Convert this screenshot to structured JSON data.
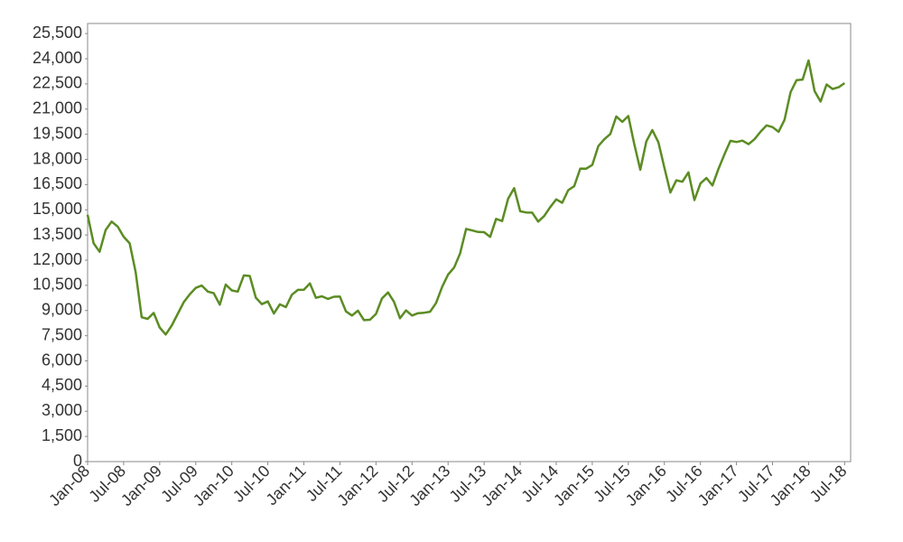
{
  "chart_data": {
    "type": "line",
    "x": [
      "2008-01",
      "2008-02",
      "2008-03",
      "2008-04",
      "2008-05",
      "2008-06",
      "2008-07",
      "2008-08",
      "2008-09",
      "2008-10",
      "2008-11",
      "2008-12",
      "2009-01",
      "2009-02",
      "2009-03",
      "2009-04",
      "2009-05",
      "2009-06",
      "2009-07",
      "2009-08",
      "2009-09",
      "2009-10",
      "2009-11",
      "2009-12",
      "2010-01",
      "2010-02",
      "2010-03",
      "2010-04",
      "2010-05",
      "2010-06",
      "2010-07",
      "2010-08",
      "2010-09",
      "2010-10",
      "2010-11",
      "2010-12",
      "2011-01",
      "2011-02",
      "2011-03",
      "2011-04",
      "2011-05",
      "2011-06",
      "2011-07",
      "2011-08",
      "2011-09",
      "2011-10",
      "2011-11",
      "2011-12",
      "2012-01",
      "2012-02",
      "2012-03",
      "2012-04",
      "2012-05",
      "2012-06",
      "2012-07",
      "2012-08",
      "2012-09",
      "2012-10",
      "2012-11",
      "2012-12",
      "2013-01",
      "2013-02",
      "2013-03",
      "2013-04",
      "2013-05",
      "2013-06",
      "2013-07",
      "2013-08",
      "2013-09",
      "2013-10",
      "2013-11",
      "2013-12",
      "2014-01",
      "2014-02",
      "2014-03",
      "2014-04",
      "2014-05",
      "2014-06",
      "2014-07",
      "2014-08",
      "2014-09",
      "2014-10",
      "2014-11",
      "2014-12",
      "2015-01",
      "2015-02",
      "2015-03",
      "2015-04",
      "2015-05",
      "2015-06",
      "2015-07",
      "2015-08",
      "2015-09",
      "2015-10",
      "2015-11",
      "2015-12",
      "2016-01",
      "2016-02",
      "2016-03",
      "2016-04",
      "2016-05",
      "2016-06",
      "2016-07",
      "2016-08",
      "2016-09",
      "2016-10",
      "2016-11",
      "2016-12",
      "2017-01",
      "2017-02",
      "2017-03",
      "2017-04",
      "2017-05",
      "2017-06",
      "2017-07",
      "2017-08",
      "2017-09",
      "2017-10",
      "2017-11",
      "2017-12",
      "2018-01",
      "2018-02",
      "2018-03",
      "2018-04",
      "2018-05",
      "2018-06",
      "2018-07"
    ],
    "series": [
      {
        "color": "#5b8c23",
        "values": [
          14700,
          13000,
          12500,
          13800,
          14300,
          14000,
          13400,
          13000,
          11300,
          8600,
          8500,
          8860,
          7990,
          7570,
          8100,
          8800,
          9500,
          9960,
          10350,
          10490,
          10130,
          10030,
          9350,
          10550,
          10200,
          10130,
          11090,
          11060,
          9770,
          9380,
          9540,
          8820,
          9370,
          9200,
          9940,
          10230,
          10240,
          10620,
          9760,
          9850,
          9690,
          9820,
          9830,
          8950,
          8700,
          8990,
          8430,
          8450,
          8800,
          9720,
          10080,
          9520,
          8540,
          9010,
          8700,
          8840,
          8870,
          8930,
          9450,
          10400,
          11140,
          11560,
          12400,
          13860,
          13770,
          13680,
          13670,
          13390,
          14460,
          14330,
          15660,
          16290,
          14910,
          14840,
          14830,
          14300,
          14630,
          15160,
          15620,
          15420,
          16170,
          16410,
          17460,
          17450,
          17670,
          18800,
          19200,
          19520,
          20560,
          20240,
          20590,
          18890,
          17390,
          19080,
          19750,
          19030,
          17520,
          16030,
          16760,
          16670,
          17230,
          15580,
          16570,
          16890,
          16450,
          17430,
          18310,
          19110,
          19040,
          19120,
          18910,
          19200,
          19650,
          20030,
          19930,
          19650,
          20360,
          22010,
          22720,
          22760,
          23900,
          22070,
          21450,
          22470,
          22200,
          22300,
          22550
        ]
      }
    ],
    "xlim": [
      "2008-01",
      "2018-08"
    ],
    "xticks": [
      {
        "value": "2008-01",
        "label": "Jan-08"
      },
      {
        "value": "2008-07",
        "label": "Jul-08"
      },
      {
        "value": "2009-01",
        "label": "Jan-09"
      },
      {
        "value": "2009-07",
        "label": "Jul-09"
      },
      {
        "value": "2010-01",
        "label": "Jan-10"
      },
      {
        "value": "2010-07",
        "label": "Jul-10"
      },
      {
        "value": "2011-01",
        "label": "Jan-11"
      },
      {
        "value": "2011-07",
        "label": "Jul-11"
      },
      {
        "value": "2012-01",
        "label": "Jan-12"
      },
      {
        "value": "2012-07",
        "label": "Jul-12"
      },
      {
        "value": "2013-01",
        "label": "Jan-13"
      },
      {
        "value": "2013-07",
        "label": "Jul-13"
      },
      {
        "value": "2014-01",
        "label": "Jan-14"
      },
      {
        "value": "2014-07",
        "label": "Jul-14"
      },
      {
        "value": "2015-01",
        "label": "Jan-15"
      },
      {
        "value": "2015-07",
        "label": "Jul-15"
      },
      {
        "value": "2016-01",
        "label": "Jan-16"
      },
      {
        "value": "2016-07",
        "label": "Jul-16"
      },
      {
        "value": "2017-01",
        "label": "Jan-17"
      },
      {
        "value": "2017-07",
        "label": "Jul-17"
      },
      {
        "value": "2018-01",
        "label": "Jan-18"
      },
      {
        "value": "2018-07",
        "label": "Jul-18"
      }
    ],
    "ylim": [
      0,
      26100
    ],
    "yticks": [
      0,
      {
        "value": 1500,
        "label": "1,500"
      },
      {
        "value": 3000,
        "label": "3,000"
      },
      {
        "value": 4500,
        "label": "4,500"
      },
      {
        "value": 6000,
        "label": "6,000"
      },
      {
        "value": 7500,
        "label": "7,500"
      },
      {
        "value": 9000,
        "label": "9,000"
      },
      {
        "value": 10500,
        "label": "10,500"
      },
      {
        "value": 12000,
        "label": "12,000"
      },
      {
        "value": 13500,
        "label": "13,500"
      },
      {
        "value": 15000,
        "label": "15,000"
      },
      {
        "value": 16500,
        "label": "16,500"
      },
      {
        "value": 18000,
        "label": "18,000"
      },
      {
        "value": 19500,
        "label": "19,500"
      },
      {
        "value": 21000,
        "label": "21,000"
      },
      {
        "value": 22500,
        "label": "22,500"
      },
      {
        "value": 24000,
        "label": "24,000"
      },
      {
        "value": 25500,
        "label": "25,500"
      }
    ],
    "grid": false
  }
}
